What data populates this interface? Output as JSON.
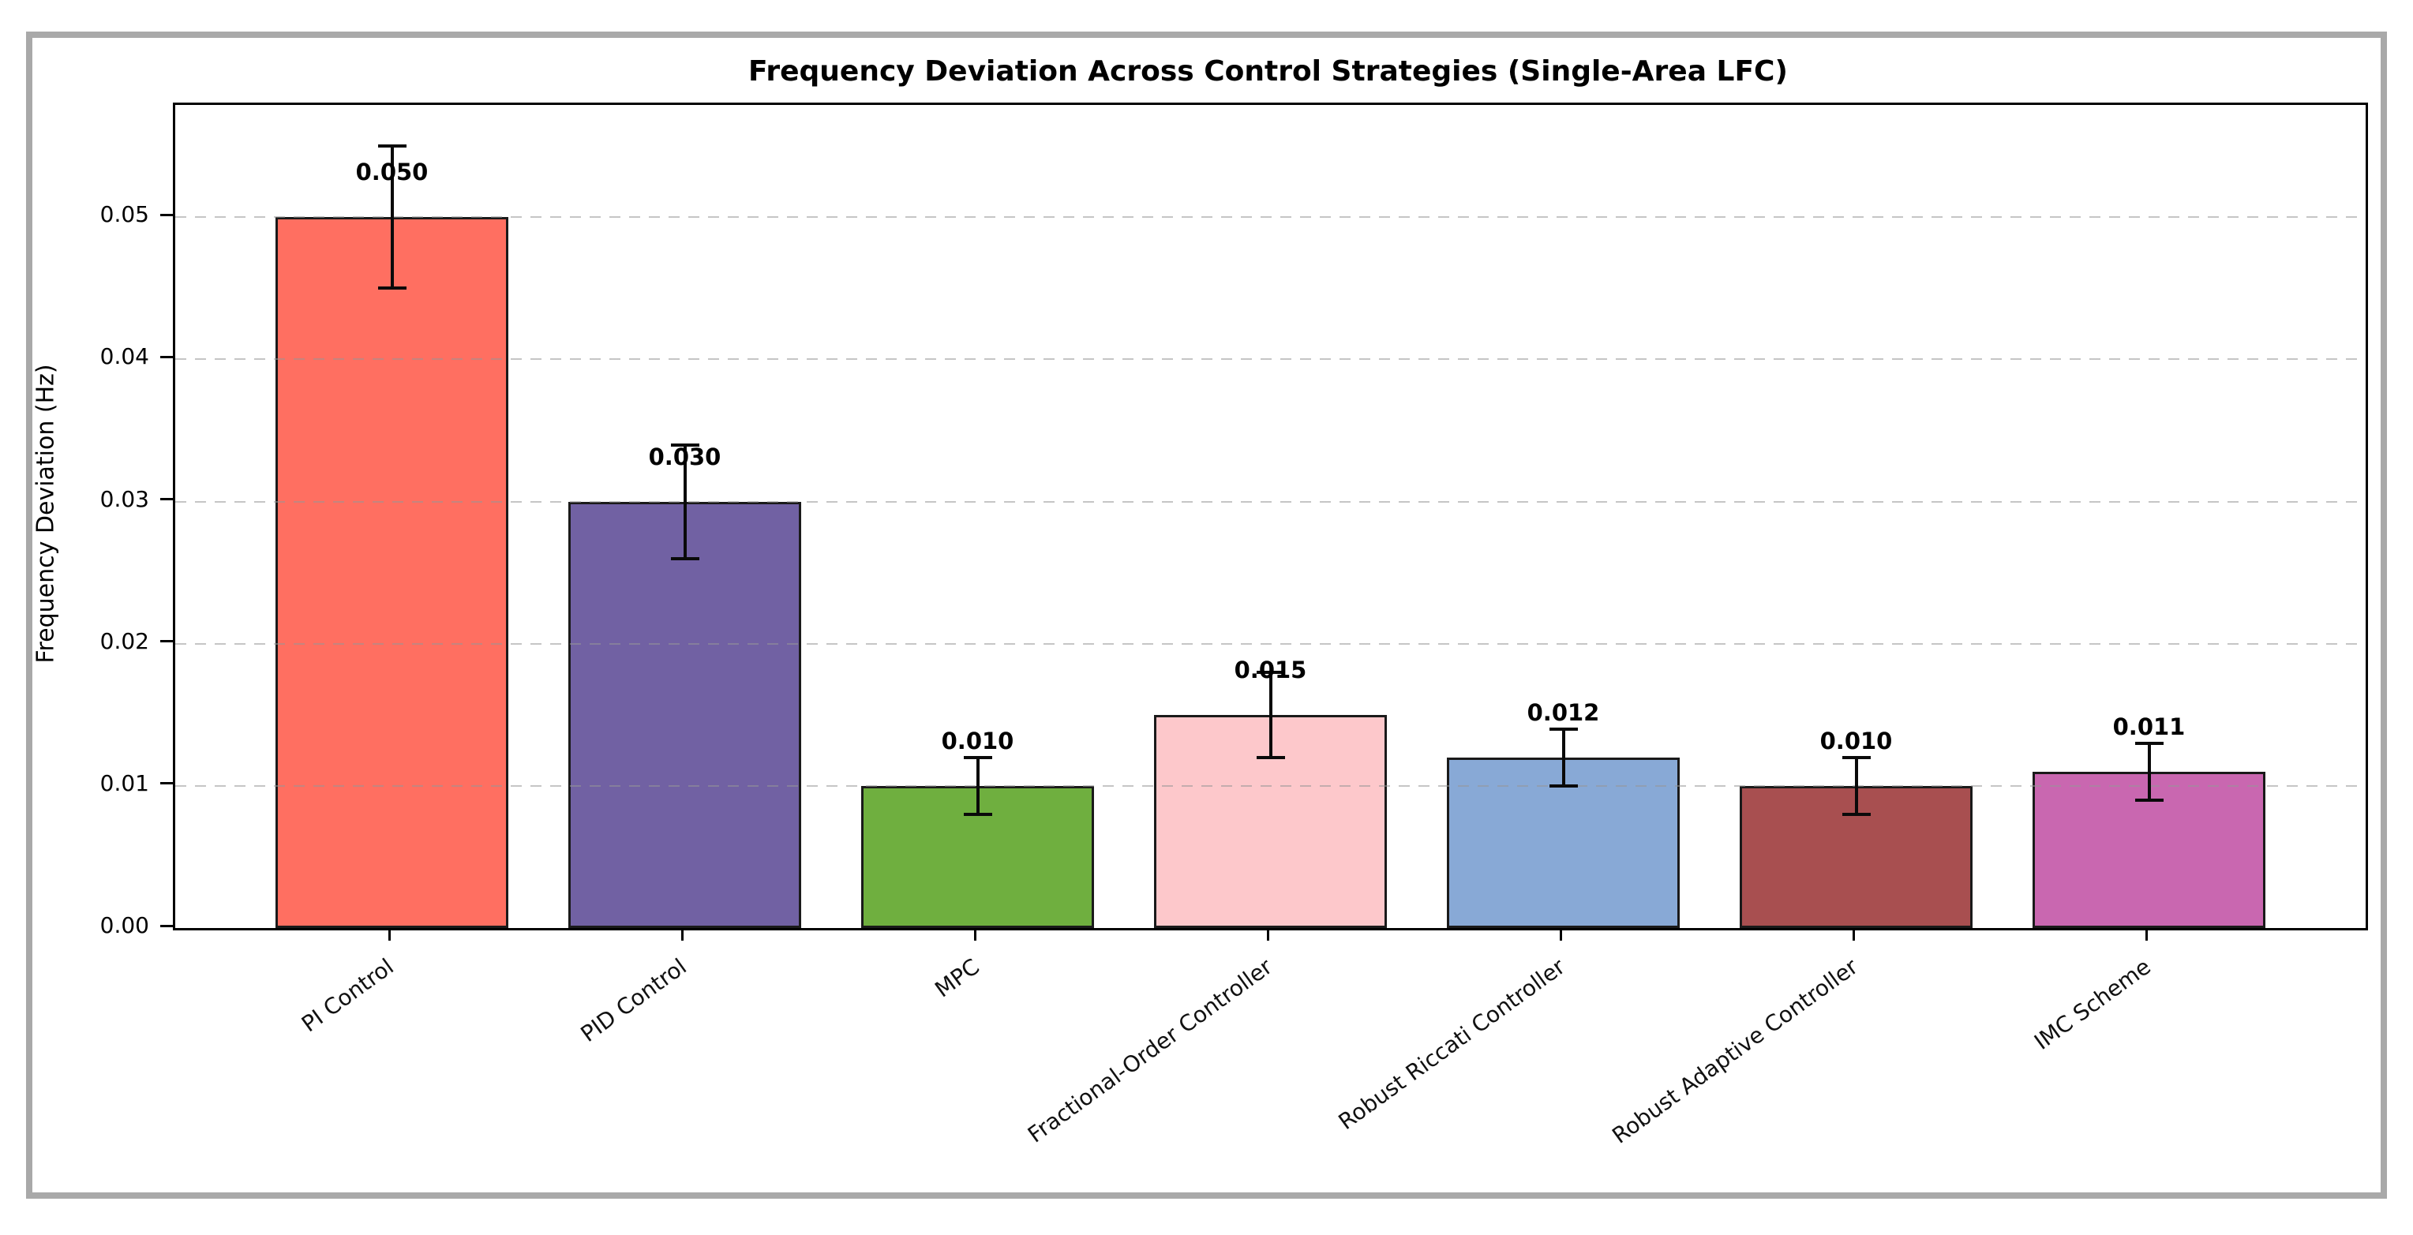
{
  "chart_data": {
    "type": "bar",
    "title": "Frequency Deviation Across Control Strategies (Single-Area LFC)",
    "ylabel": "Frequency Deviation (Hz)",
    "xlabel": "",
    "categories": [
      "PI Control",
      "PID Control",
      "MPC",
      "Fractional-Order Controller",
      "Robust Riccati Controller",
      "Robust Adaptive Controller",
      "IMC Scheme"
    ],
    "values": [
      0.05,
      0.03,
      0.01,
      0.015,
      0.012,
      0.01,
      0.011
    ],
    "errors": [
      0.005,
      0.004,
      0.002,
      0.003,
      0.002,
      0.002,
      0.002
    ],
    "bar_labels": [
      "0.050",
      "0.030",
      "0.010",
      "0.015",
      "0.012",
      "0.010",
      "0.011"
    ],
    "bar_colors": [
      "#FF6F61",
      "#7161A3",
      "#6FAF3F",
      "#FDC8CB",
      "#88A9D6",
      "#A84F50",
      "#C967B0"
    ],
    "bar_edge_color": "#1a1a1a",
    "error_bar_color": "#0a0a0a",
    "yticks": [
      0,
      0.01,
      0.02,
      0.03,
      0.04,
      0.05
    ],
    "ytick_labels": [
      "0.00",
      "0.01",
      "0.02",
      "0.03",
      "0.04",
      "0.05"
    ],
    "ylim": [
      0,
      0.0579
    ],
    "grid": "horizontal-dashed",
    "grid_color": "#c8c8c8",
    "legend": "none",
    "frame_color": "#a9a9a9"
  }
}
